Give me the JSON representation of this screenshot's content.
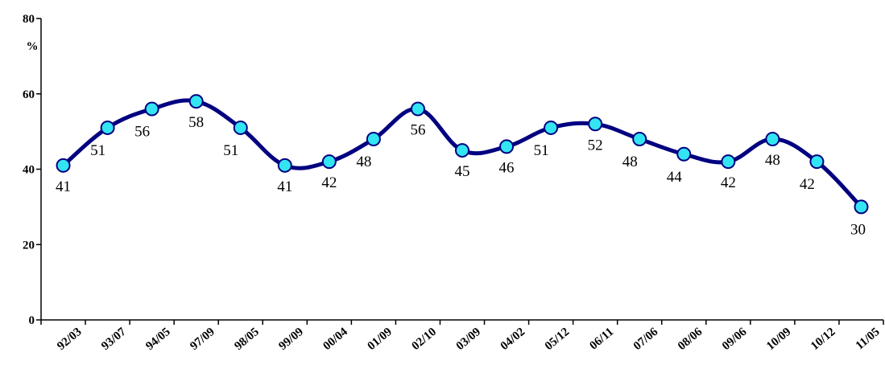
{
  "chart_data": {
    "type": "line",
    "categories": [
      "92/03",
      "93/07",
      "94/05",
      "97/09",
      "98/05",
      "99/09",
      "00/04",
      "01/09",
      "02/10",
      "03/09",
      "04/02",
      "05/12",
      "06/11",
      "07/06",
      "08/06",
      "09/06",
      "10/09",
      "10/12",
      "11/05"
    ],
    "series": [
      {
        "values": [
          41,
          51,
          56,
          58,
          51,
          41,
          42,
          48,
          56,
          45,
          46,
          51,
          52,
          48,
          44,
          42,
          48,
          42,
          30
        ],
        "labels": [
          "41",
          "51",
          "56",
          "58",
          "51",
          "41",
          "42",
          "48",
          "56",
          "45",
          "46",
          "51",
          "52",
          "48",
          "44",
          "42",
          "48",
          "42",
          "30"
        ]
      }
    ],
    "xlabel": "",
    "ylabel": "%",
    "ylim": [
      0,
      80
    ],
    "yticks": [
      "0",
      "20",
      "40",
      "60",
      "80"
    ],
    "grid": false,
    "colors": {
      "line": "#000080",
      "marker_fill": "#33E5F2",
      "marker_stroke": "#000080"
    }
  }
}
